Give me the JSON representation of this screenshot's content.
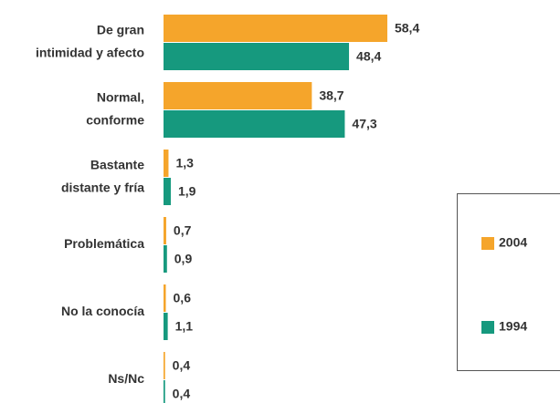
{
  "chart_data": {
    "type": "bar",
    "categories": [
      [
        "De gran",
        "intimidad y afecto"
      ],
      [
        "Normal,",
        "conforme"
      ],
      [
        "Bastante",
        "distante y fría"
      ],
      [
        "Problemática"
      ],
      [
        "No la conocía"
      ],
      [
        "Ns/Nc"
      ]
    ],
    "series": [
      {
        "name": "2004",
        "color": "#f5a52b",
        "values": [
          58.4,
          38.7,
          1.3,
          0.7,
          0.6,
          0.4
        ],
        "value_labels": [
          "58,4",
          "38,7",
          "1,3",
          "0,7",
          "0,6",
          "0,4"
        ]
      },
      {
        "name": "1994",
        "color": "#16997e",
        "values": [
          48.4,
          47.3,
          1.9,
          0.9,
          1.1,
          0.4
        ],
        "value_labels": [
          "48,4",
          "47,3",
          "1,9",
          "0,9",
          "1,1",
          "0,4"
        ]
      }
    ],
    "legend": "right"
  }
}
